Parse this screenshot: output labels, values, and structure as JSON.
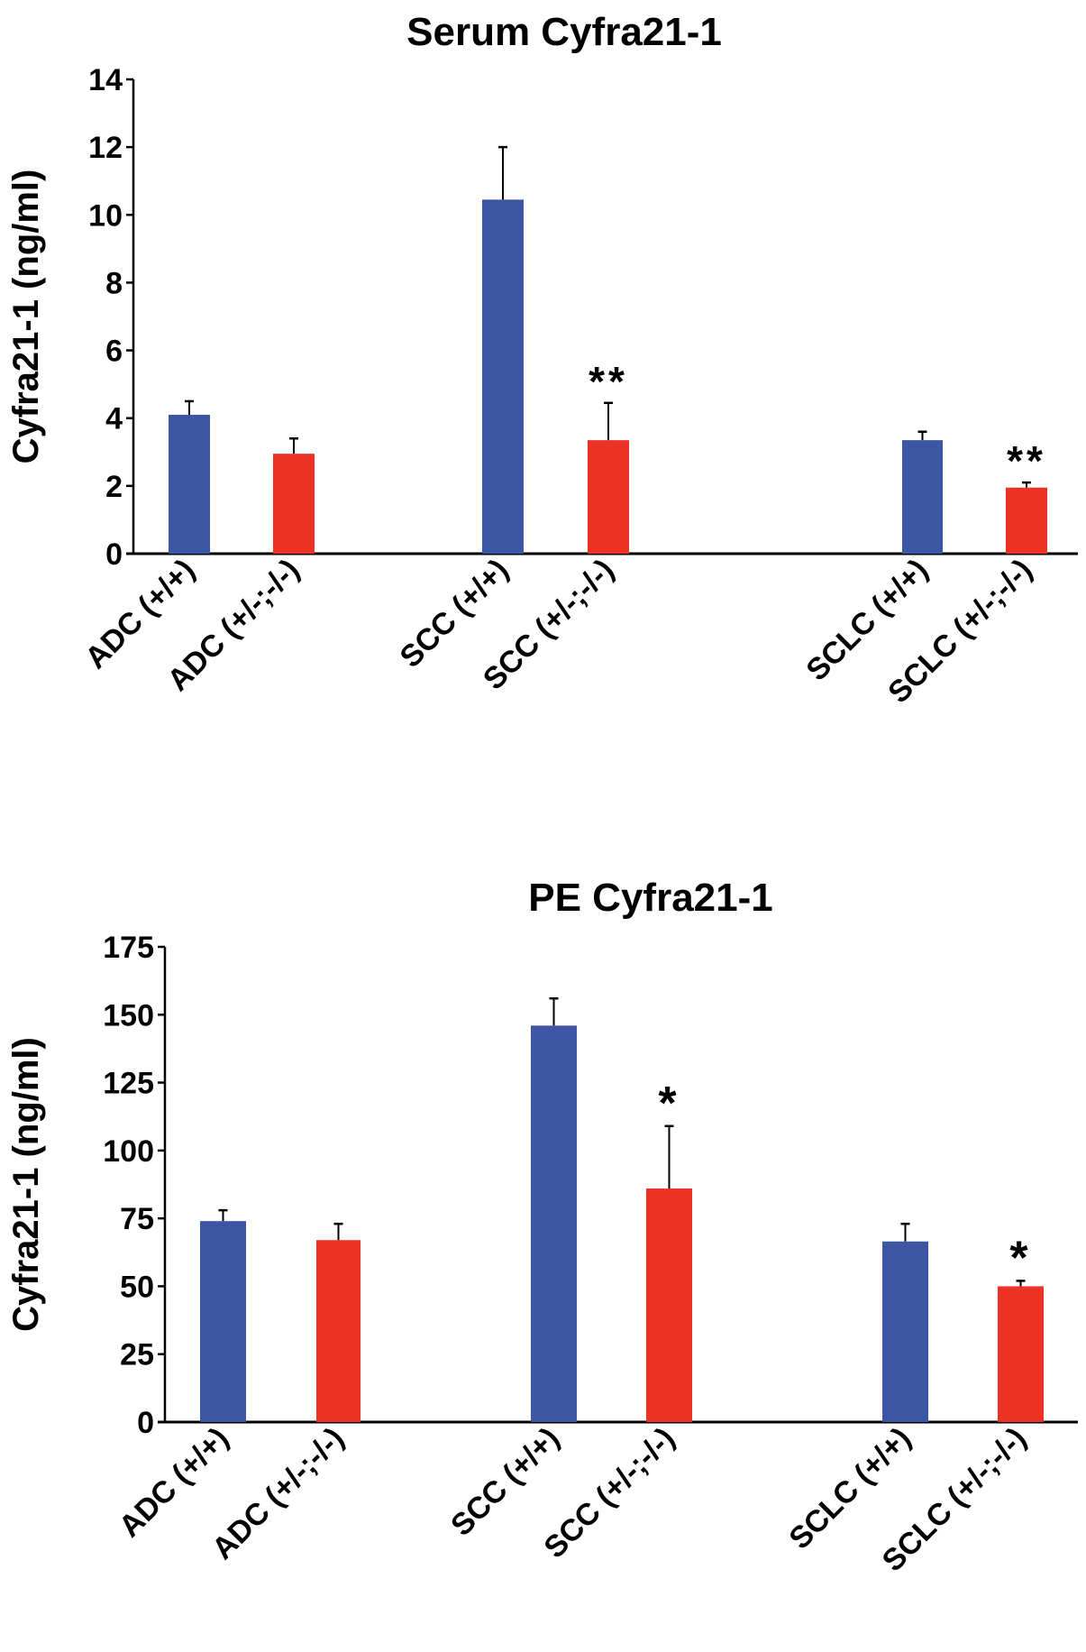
{
  "chart_data": [
    {
      "type": "bar",
      "title": "Serum Cyfra21-1",
      "xlabel": "",
      "ylabel": "Cyfra21-1 (ng/ml)",
      "ylim": [
        0,
        14
      ],
      "yticks": [
        "0",
        "2",
        "4",
        "6",
        "8",
        "10",
        "12",
        "14"
      ],
      "categories": [
        "ADC (+/+)",
        "ADC (+/-;-/-)",
        "SCC (+/+)",
        "SCC (+/-;-/-)",
        "SCLC (+/+)",
        "SCLC (+/-;-/-)"
      ],
      "values": [
        4.1,
        2.95,
        10.45,
        3.35,
        3.35,
        1.95
      ],
      "error_upper": [
        4.5,
        3.4,
        12.0,
        4.45,
        3.6,
        2.1
      ],
      "colors": [
        "#3c56a5",
        "#ec3323",
        "#3c56a5",
        "#ec3323",
        "#3c56a5",
        "#ec3323"
      ],
      "annotations": [
        "",
        "",
        "",
        "**",
        "",
        "**"
      ],
      "grid": false
    },
    {
      "type": "bar",
      "title": "PE Cyfra21-1",
      "xlabel": "",
      "ylabel": "Cyfra21-1 (ng/ml)",
      "ylim": [
        0,
        175
      ],
      "yticks": [
        "0",
        "25",
        "50",
        "75",
        "100",
        "125",
        "150",
        "175"
      ],
      "categories": [
        "ADC (+/+)",
        "ADC (+/-;-/-)",
        "SCC (+/+)",
        "SCC (+/-;-/-)",
        "SCLC (+/+)",
        "SCLC (+/-;-/-)"
      ],
      "values": [
        74,
        67,
        146,
        86,
        66.5,
        50
      ],
      "error_upper": [
        78,
        73,
        156,
        109,
        73,
        52
      ],
      "colors": [
        "#3c56a5",
        "#ec3323",
        "#3c56a5",
        "#ec3323",
        "#3c56a5",
        "#ec3323"
      ],
      "annotations": [
        "",
        "",
        "",
        "*",
        "",
        "*"
      ],
      "grid": false
    }
  ]
}
